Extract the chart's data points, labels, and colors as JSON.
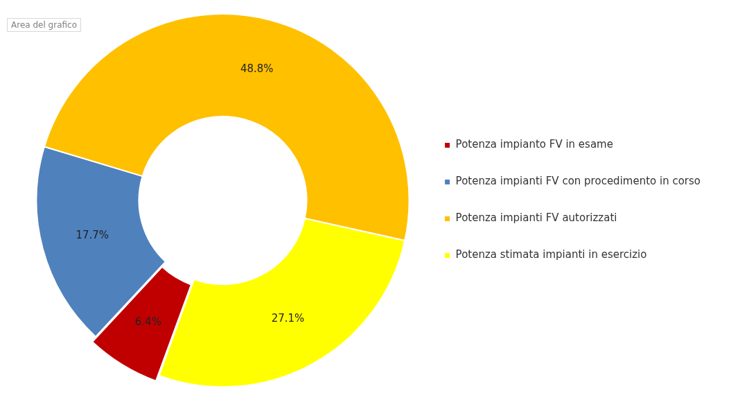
{
  "chart_data": {
    "type": "donut",
    "categories": [
      "Potenza impianto FV in esame",
      "Potenza impianti FV con procedimento in corso",
      "Potenza impianti FV autorizzati",
      "Potenza stimata impianti in esercizio"
    ],
    "values": [
      6.4,
      17.7,
      48.8,
      27.1
    ],
    "colors": [
      "#c00000",
      "#4f81bd",
      "#ffc000",
      "#ffff00"
    ],
    "value_labels": [
      "6.4%",
      "17.7%",
      "48.8%",
      "27.1%"
    ],
    "legend": "right",
    "annotations": [
      "Area del grafico"
    ]
  }
}
